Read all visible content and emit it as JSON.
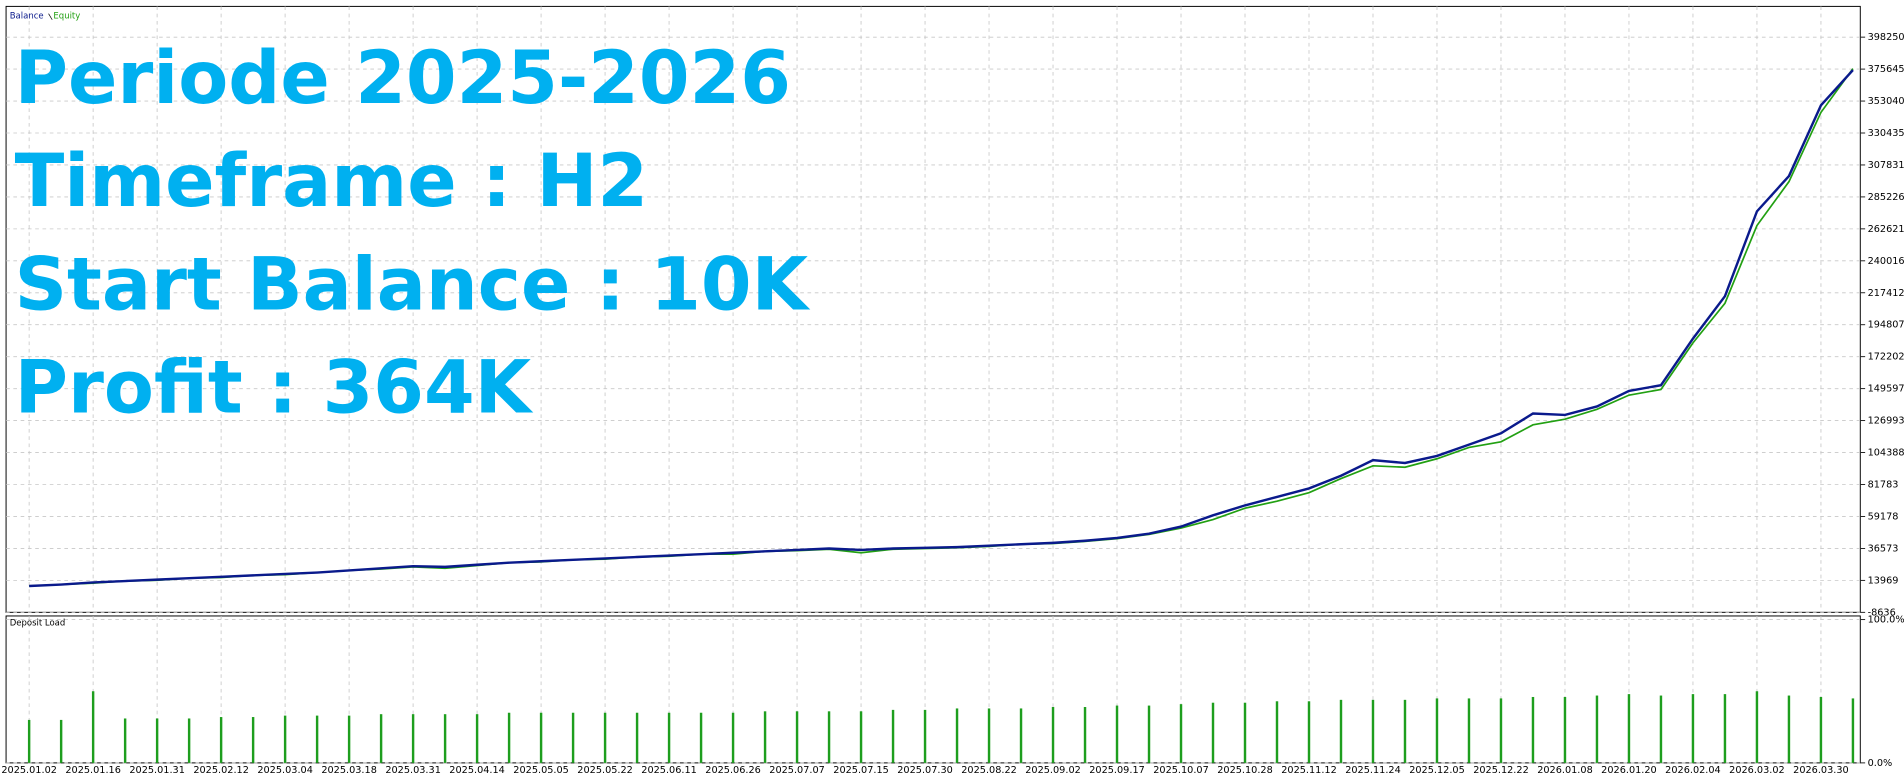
{
  "chart_data": [
    {
      "type": "line",
      "annotations": [
        "Periode 2025-2026",
        "Timeframe : H2",
        "Start Balance : 10K",
        "Profit : 364K"
      ],
      "series": [
        {
          "name": "Balance",
          "color": "#0a1a8c",
          "values": [
            10000,
            11000,
            12500,
            13500,
            14500,
            15500,
            16500,
            17500,
            18500,
            19500,
            21000,
            22500,
            24000,
            23500,
            25000,
            26500,
            27500,
            28500,
            29500,
            30500,
            31500,
            32500,
            33500,
            34500,
            35500,
            36500,
            35500,
            36500,
            37000,
            37500,
            38500,
            39500,
            40500,
            42000,
            44000,
            47000,
            52000,
            60000,
            67000,
            73000,
            79000,
            88000,
            99000,
            97000,
            102000,
            110000,
            118000,
            132000,
            131000,
            137000,
            148000,
            152000,
            185000,
            215000,
            275000,
            300000,
            350000,
            375000
          ]
        },
        {
          "name": "Equity",
          "color": "#22a012",
          "values": [
            10000,
            11000,
            12000,
            13500,
            14000,
            15500,
            16000,
            17500,
            18000,
            19500,
            21000,
            22000,
            23500,
            22500,
            24500,
            26500,
            27000,
            28500,
            29000,
            30500,
            31000,
            32500,
            32500,
            34500,
            35000,
            36000,
            33500,
            36000,
            36500,
            37000,
            38000,
            39500,
            40000,
            41500,
            43500,
            46500,
            51000,
            57000,
            65000,
            70000,
            76000,
            86000,
            95000,
            94000,
            100000,
            108000,
            112000,
            124000,
            128000,
            135000,
            145000,
            149000,
            182000,
            210000,
            265000,
            296000,
            345000,
            376000
          ]
        }
      ],
      "ylim": [
        -8636,
        420000
      ],
      "yticks": [
        398250,
        375645,
        353040,
        330435,
        307831,
        285226,
        262621,
        240016,
        217412,
        194807,
        172202,
        149597,
        126993,
        104388,
        81783,
        59178,
        36573,
        13969,
        -8636
      ],
      "grid": true
    },
    {
      "type": "bar",
      "title": "Deposit Load",
      "color": "#1e9e1e",
      "categories": [
        "2025.01.02",
        null,
        "2025.01.16",
        null,
        "2025.01.31",
        null,
        "2025.02.12",
        null,
        "2025.03.04",
        null,
        "2025.03.18",
        null,
        "2025.03.31",
        null,
        "2025.04.14",
        null,
        "2025.05.05",
        null,
        "2025.05.22",
        null,
        "2025.06.11",
        null,
        "2025.06.26",
        null,
        "2025.07.07",
        null,
        "2025.07.15",
        null,
        "2025.07.30",
        null,
        "2025.08.22",
        null,
        "2025.09.02",
        null,
        "2025.09.17",
        null,
        "2025.10.07",
        null,
        "2025.10.28",
        null,
        "2025.11.12",
        null,
        "2025.11.24",
        null,
        "2025.12.05",
        null,
        "2025.12.22",
        null,
        "2026.01.08",
        null,
        "2026.01.20",
        null,
        "2026.02.04",
        null,
        "2026.03.02",
        null,
        "2026.03.30",
        null
      ],
      "values": [
        30,
        30,
        50,
        31,
        31,
        31,
        32,
        32,
        33,
        33,
        33,
        34,
        34,
        34,
        34,
        35,
        35,
        35,
        35,
        35,
        35,
        35,
        35,
        36,
        36,
        36,
        36,
        37,
        37,
        38,
        38,
        38,
        39,
        39,
        40,
        40,
        41,
        42,
        42,
        43,
        43,
        44,
        44,
        44,
        45,
        45,
        45,
        46,
        46,
        47,
        48,
        47,
        48,
        48,
        50,
        47,
        46,
        45
      ],
      "ylim": [
        0,
        100
      ],
      "yticks": [
        {
          "value": 100,
          "label": "100.0%"
        },
        {
          "value": 0,
          "label": "0.0%"
        }
      ],
      "grid": true
    }
  ]
}
